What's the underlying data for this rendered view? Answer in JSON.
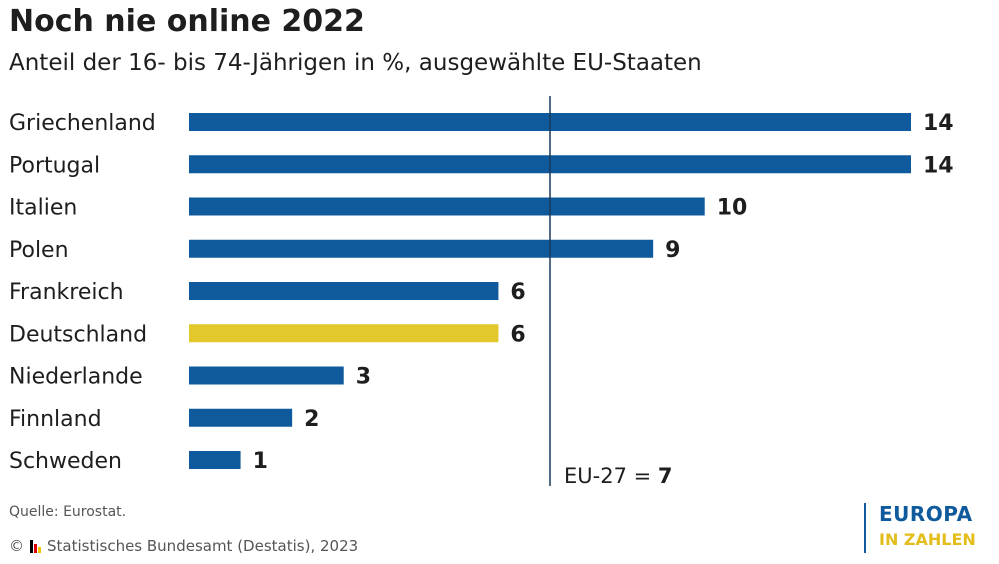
{
  "title": "Noch nie online 2022",
  "subtitle": "Anteil der 16- bis 74-Jährigen in %, ausgewählte EU-Staaten",
  "colors": {
    "default": "#0f5a9c",
    "highlight": "#e3c82b",
    "reference_line": "#1a3a5a"
  },
  "chart_data": {
    "type": "bar",
    "orientation": "horizontal",
    "categories": [
      "Griechenland",
      "Portugal",
      "Italien",
      "Polen",
      "Frankreich",
      "Deutschland",
      "Niederlande",
      "Finnland",
      "Schweden"
    ],
    "values": [
      14,
      14,
      10,
      9,
      6,
      6,
      3,
      2,
      1
    ],
    "value_labels": [
      "14",
      "14",
      "10",
      "9",
      "6",
      "6",
      "3",
      "2",
      "1"
    ],
    "highlight": "Deutschland",
    "xlim": [
      0,
      14
    ],
    "reference": {
      "label": "EU-27 =",
      "value": 7,
      "value_label": "7"
    },
    "grid": false
  },
  "footer": {
    "source": "Quelle: Eurostat.",
    "copyright_symbol": "©",
    "copyright_text": "Statistisches Bundesamt (Destatis), 2023"
  },
  "logo": {
    "line1": "EUROPA",
    "line2": "IN ZAHLEN"
  }
}
